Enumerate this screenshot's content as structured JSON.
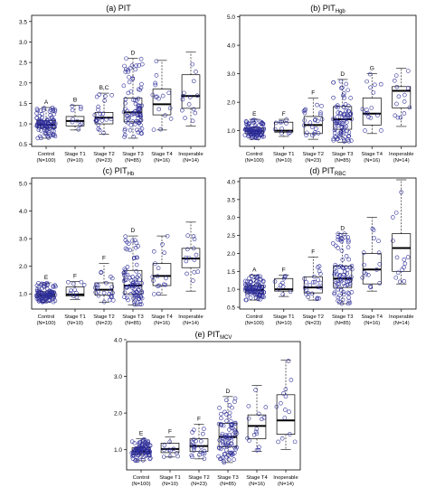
{
  "colors": {
    "points": "#2e2e99",
    "box": "#000000",
    "axis": "#000000"
  },
  "common": {
    "categories": [
      "Control",
      "Stage T1",
      "Stage T2",
      "Stage T3",
      "Stage T4",
      "Inoperable"
    ],
    "counts": [
      "(N=100)",
      "(N=10)",
      "(N=23)",
      "(N=85)",
      "(N=16)",
      "(N=14)"
    ]
  },
  "chart_data": [
    {
      "type": "box",
      "title": "(a) PIT",
      "title_main": "(a) PIT",
      "title_sub": "",
      "ylim": [
        0.45,
        3.65
      ],
      "yticks": [
        "0.5",
        "1.0",
        "1.5",
        "2.0",
        "2.5",
        "3.0",
        "3.5"
      ],
      "boxes": [
        {
          "category": "Control",
          "min": 0.65,
          "q1": 0.9,
          "median": 0.98,
          "q3": 1.08,
          "max": 1.4
        },
        {
          "category": "Stage T1",
          "min": 0.85,
          "q1": 0.95,
          "median": 1.07,
          "q3": 1.18,
          "max": 1.45
        },
        {
          "category": "Stage T2",
          "min": 0.75,
          "q1": 1.0,
          "median": 1.15,
          "q3": 1.28,
          "max": 1.75
        },
        {
          "category": "Stage T3",
          "min": 0.65,
          "q1": 1.05,
          "median": 1.28,
          "q3": 1.63,
          "max": 2.6
        },
        {
          "category": "Stage T4",
          "min": 0.85,
          "q1": 1.22,
          "median": 1.48,
          "q3": 1.85,
          "max": 2.55
        },
        {
          "category": "Inoperable",
          "min": 0.95,
          "q1": 1.38,
          "median": 1.68,
          "q3": 2.2,
          "max": 2.75
        }
      ],
      "letters": [
        "A",
        "B",
        "B,C",
        "D",
        "",
        ""
      ],
      "letter_values": [
        1.4,
        1.45,
        1.75,
        2.6,
        0,
        0
      ]
    },
    {
      "type": "box",
      "title": "(b) PIT Hgb",
      "title_main": "(b) PIT",
      "title_sub": "Hgb",
      "ylim": [
        0.45,
        5.05
      ],
      "yticks": [
        "1.0",
        "2.0",
        "3.0",
        "4.0",
        "5.0"
      ],
      "boxes": [
        {
          "category": "Control",
          "min": 0.7,
          "q1": 0.9,
          "median": 0.98,
          "q3": 1.1,
          "max": 1.4
        },
        {
          "category": "Stage T1",
          "min": 0.8,
          "q1": 0.95,
          "median": 1.0,
          "q3": 1.3,
          "max": 1.4
        },
        {
          "category": "Stage T2",
          "min": 0.7,
          "q1": 0.9,
          "median": 1.2,
          "q3": 1.5,
          "max": 2.15
        },
        {
          "category": "Stage T3",
          "min": 0.6,
          "q1": 1.05,
          "median": 1.4,
          "q3": 1.85,
          "max": 2.8
        },
        {
          "category": "Stage T4",
          "min": 0.9,
          "q1": 1.2,
          "median": 1.6,
          "q3": 2.15,
          "max": 3.0
        },
        {
          "category": "Inoperable",
          "min": 1.15,
          "q1": 1.8,
          "median": 2.4,
          "q3": 2.55,
          "max": 3.2
        }
      ],
      "letters": [
        "E",
        "F",
        "F",
        "D",
        "G",
        ""
      ],
      "letter_values": [
        1.4,
        1.4,
        2.15,
        2.8,
        3.0,
        0
      ]
    },
    {
      "type": "box",
      "title": "(c) PIT Hb",
      "title_main": "(c) PIT",
      "title_sub": "Hb",
      "ylim": [
        0.45,
        5.2
      ],
      "yticks": [
        "1.0",
        "2.0",
        "3.0",
        "4.0",
        "5.0"
      ],
      "boxes": [
        {
          "category": "Control",
          "min": 0.7,
          "q1": 0.88,
          "median": 0.96,
          "q3": 1.08,
          "max": 1.4
        },
        {
          "category": "Stage T1",
          "min": 0.8,
          "q1": 0.92,
          "median": 0.98,
          "q3": 1.25,
          "max": 1.45
        },
        {
          "category": "Stage T2",
          "min": 0.7,
          "q1": 0.95,
          "median": 1.15,
          "q3": 1.4,
          "max": 2.1
        },
        {
          "category": "Stage T3",
          "min": 0.6,
          "q1": 1.0,
          "median": 1.3,
          "q3": 1.85,
          "max": 3.1
        },
        {
          "category": "Stage T4",
          "min": 0.95,
          "q1": 1.3,
          "median": 1.65,
          "q3": 2.1,
          "max": 3.1
        },
        {
          "category": "Inoperable",
          "min": 1.1,
          "q1": 1.95,
          "median": 2.28,
          "q3": 2.65,
          "max": 3.6
        }
      ],
      "letters": [
        "E",
        "F",
        "F",
        "D",
        "",
        ""
      ],
      "letter_values": [
        1.4,
        1.45,
        2.1,
        3.1,
        0,
        0
      ]
    },
    {
      "type": "box",
      "title": "(d) PIT RBC",
      "title_main": "(d) PIT",
      "title_sub": "RBC",
      "ylim": [
        0.45,
        4.1
      ],
      "yticks": [
        "0.5",
        "1.0",
        "1.5",
        "2.0",
        "2.5",
        "3.0",
        "3.5",
        "4.0"
      ],
      "boxes": [
        {
          "category": "Control",
          "min": 0.7,
          "q1": 0.9,
          "median": 0.98,
          "q3": 1.1,
          "max": 1.4
        },
        {
          "category": "Stage T1",
          "min": 0.8,
          "q1": 0.95,
          "median": 1.0,
          "q3": 1.3,
          "max": 1.4
        },
        {
          "category": "Stage T2",
          "min": 0.7,
          "q1": 0.9,
          "median": 1.05,
          "q3": 1.35,
          "max": 1.9
        },
        {
          "category": "Stage T3",
          "min": 0.6,
          "q1": 1.05,
          "median": 1.3,
          "q3": 1.65,
          "max": 2.55
        },
        {
          "category": "Stage T4",
          "min": 0.95,
          "q1": 1.15,
          "median": 1.55,
          "q3": 2.0,
          "max": 3.0
        },
        {
          "category": "Inoperable",
          "min": 1.15,
          "q1": 1.5,
          "median": 2.15,
          "q3": 2.55,
          "max": 4.05
        }
      ],
      "letters": [
        "A",
        "F",
        "F",
        "D",
        "",
        ""
      ],
      "letter_values": [
        1.4,
        1.4,
        1.9,
        2.55,
        0,
        0
      ]
    },
    {
      "type": "box",
      "title": "(e) PIT MCV",
      "title_main": "(e) PIT",
      "title_sub": "MCV",
      "ylim": [
        0.45,
        3.95
      ],
      "yticks": [
        "1.0",
        "2.0",
        "3.0",
        "4.0"
      ],
      "boxes": [
        {
          "category": "Control",
          "min": 0.7,
          "q1": 0.88,
          "median": 0.95,
          "q3": 1.05,
          "max": 1.3
        },
        {
          "category": "Stage T1",
          "min": 0.8,
          "q1": 0.92,
          "median": 1.02,
          "q3": 1.18,
          "max": 1.35
        },
        {
          "category": "Stage T2",
          "min": 0.75,
          "q1": 0.95,
          "median": 1.1,
          "q3": 1.3,
          "max": 1.7
        },
        {
          "category": "Stage T3",
          "min": 0.65,
          "q1": 1.08,
          "median": 1.35,
          "q3": 1.72,
          "max": 2.45
        },
        {
          "category": "Stage T4",
          "min": 0.95,
          "q1": 1.3,
          "median": 1.65,
          "q3": 1.95,
          "max": 2.75
        },
        {
          "category": "Inoperable",
          "min": 1.0,
          "q1": 1.42,
          "median": 1.8,
          "q3": 2.5,
          "max": 3.45
        }
      ],
      "letters": [
        "E",
        "F",
        "F",
        "D",
        "",
        ""
      ],
      "letter_values": [
        1.3,
        1.35,
        1.7,
        2.45,
        0,
        0
      ]
    }
  ]
}
